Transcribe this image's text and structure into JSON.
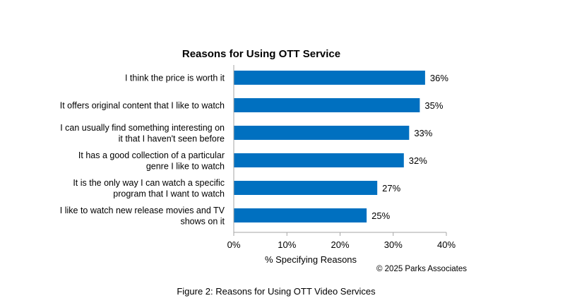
{
  "chart_data": {
    "type": "bar",
    "orientation": "horizontal",
    "title": "Reasons for Using OTT Service",
    "categories": [
      [
        "I think the price is worth it"
      ],
      [
        "It offers original content that I like to watch"
      ],
      [
        "I can usually find something interesting on",
        "it that I haven't seen before"
      ],
      [
        "It has a good collection of a particular",
        "genre I like to watch"
      ],
      [
        "It is the only way I can watch a specific",
        "program that I want to watch"
      ],
      [
        "I like to watch new release movies and TV",
        "shows on it"
      ]
    ],
    "values": [
      36,
      35,
      33,
      32,
      27,
      25
    ],
    "value_labels": [
      "36%",
      "35%",
      "33%",
      "32%",
      "27%",
      "25%"
    ],
    "xlim": [
      0,
      40
    ],
    "x_ticks": [
      0,
      10,
      20,
      30,
      40
    ],
    "x_tick_labels": [
      "0%",
      "10%",
      "20%",
      "30%",
      "40%"
    ],
    "xlabel": "% Specifying Reasons",
    "ylabel": "",
    "grid": false,
    "bar_color": "#0070C0"
  },
  "copyright": "© 2025 Parks Associates",
  "caption": "Figure 2: Reasons for Using OTT Video Services"
}
